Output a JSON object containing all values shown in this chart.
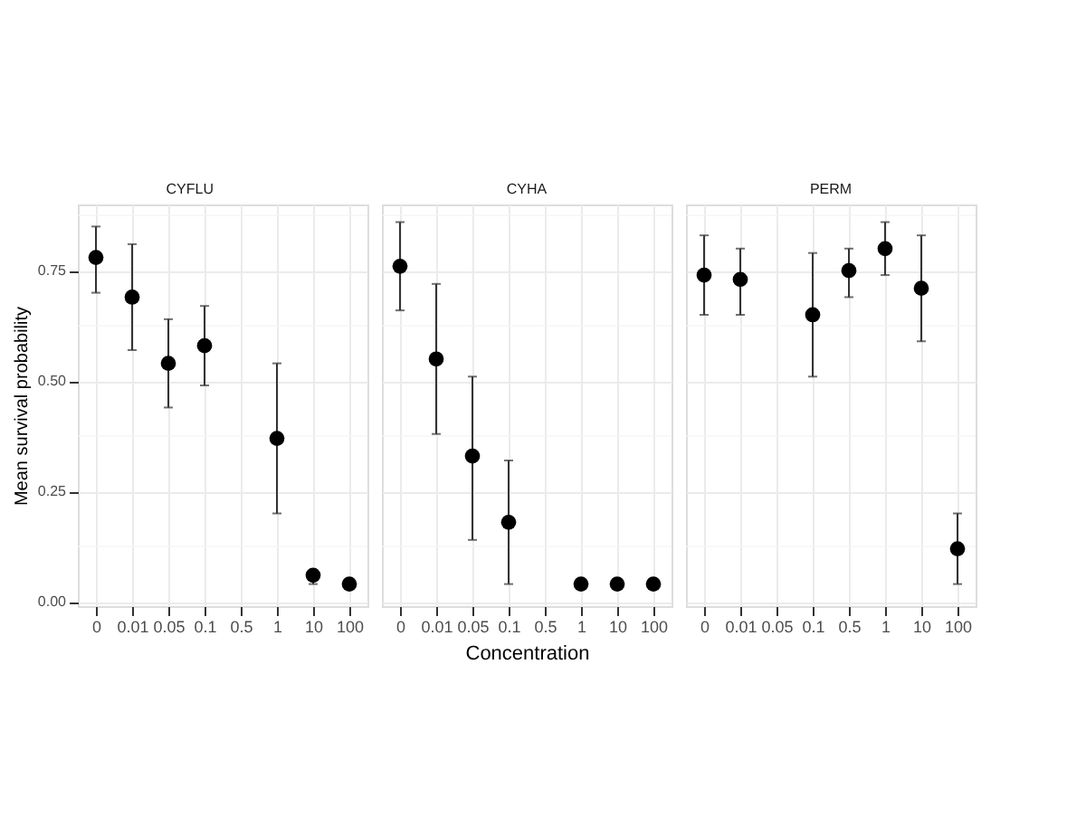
{
  "chart_data": [
    {
      "type": "scatter",
      "title": "CYFLU",
      "ylabel": "Mean survival probability",
      "categories": [
        "0",
        "0.01",
        "0.05",
        "0.1",
        "0.5",
        "1",
        "10",
        "100"
      ],
      "color": "#000000",
      "marker": "circle",
      "grid": true,
      "legend": false,
      "values": [
        0.78,
        0.69,
        0.54,
        0.58,
        null,
        0.37,
        0.06,
        0.04
      ],
      "errors": [
        [
          0.7,
          0.85
        ],
        [
          0.57,
          0.81
        ],
        [
          0.44,
          0.64
        ],
        [
          0.49,
          0.67
        ],
        null,
        [
          0.2,
          0.54
        ],
        [
          0.04,
          0.07
        ],
        null
      ],
      "ylim": [
        -0.01,
        0.9
      ],
      "yticks": [
        {
          "value": 0,
          "label": "0.00"
        },
        0.25,
        {
          "value": 0.5,
          "label": "0.50"
        },
        0.75
      ]
    },
    {
      "type": "scatter",
      "title": "CYHA",
      "xlabel": "Concentration",
      "categories": [
        "0",
        "0.01",
        "0.05",
        "0.1",
        "0.5",
        "1",
        "10",
        "100"
      ],
      "color": "#000000",
      "marker": "circle",
      "grid": true,
      "tick_labels": "x",
      "values": [
        0.76,
        0.55,
        0.33,
        0.18,
        null,
        0.04,
        0.04,
        0.04
      ],
      "errors": [
        [
          0.66,
          0.86
        ],
        [
          0.38,
          0.72
        ],
        [
          0.14,
          0.51
        ],
        [
          0.04,
          0.32
        ],
        null,
        null,
        null,
        null
      ],
      "ylim": [
        -0.01,
        0.9
      ],
      "yticks": [
        0,
        0.25,
        0.5,
        0.75
      ]
    },
    {
      "type": "scatter",
      "title": "PERM",
      "categories": [
        "0",
        "0.01",
        "0.05",
        "0.1",
        "0.5",
        "1",
        "10",
        "100"
      ],
      "color": "#000000",
      "marker": "circle",
      "grid": true,
      "tick_labels": "x",
      "values": [
        0.74,
        0.73,
        null,
        0.65,
        0.75,
        0.8,
        0.71,
        0.12
      ],
      "errors": [
        [
          0.65,
          0.83
        ],
        [
          0.65,
          0.8
        ],
        null,
        [
          0.51,
          0.79
        ],
        [
          0.69,
          0.8
        ],
        [
          0.74,
          0.86
        ],
        [
          0.59,
          0.83
        ],
        [
          0.04,
          0.2
        ]
      ],
      "ylim": [
        -0.01,
        0.9
      ],
      "yticks": [
        0,
        0.25,
        0.5,
        0.75
      ]
    }
  ]
}
